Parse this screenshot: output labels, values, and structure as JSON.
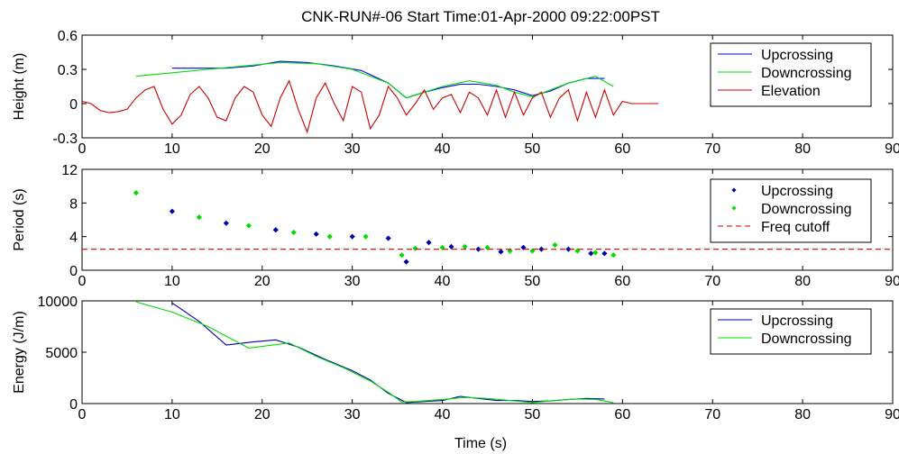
{
  "figure": {
    "title": "CNK-RUN#-06  Start Time:01-Apr-2000 09:22:00PST",
    "xlabel": "Time (s)"
  },
  "chart_data": [
    {
      "type": "line",
      "ylabel": "Height (m)",
      "xlim": [
        0,
        90
      ],
      "ylim": [
        -0.3,
        0.6
      ],
      "xticks": [
        "0",
        "10",
        "20",
        "30",
        "40",
        "50",
        "60",
        "70",
        "80",
        "90"
      ],
      "yticks": [
        "-0.3",
        "0",
        "0.3",
        "0.6"
      ],
      "legend_position": "top-right",
      "series": [
        {
          "name": "Upcrossing",
          "color": "#0000ff",
          "style": "line",
          "x": [
            10,
            13,
            16,
            19,
            22,
            25,
            28,
            31,
            34,
            36,
            38,
            40,
            42,
            44,
            46,
            48,
            50,
            52,
            54,
            56,
            58
          ],
          "y": [
            0.31,
            0.31,
            0.31,
            0.33,
            0.37,
            0.36,
            0.33,
            0.29,
            0.18,
            0.05,
            0.1,
            0.14,
            0.17,
            0.17,
            0.15,
            0.12,
            0.07,
            0.11,
            0.18,
            0.22,
            0.22
          ]
        },
        {
          "name": "Downcrossing",
          "color": "#00dd00",
          "style": "line",
          "x": [
            6,
            10,
            14,
            18,
            22,
            26,
            30,
            34,
            36,
            38,
            40,
            43,
            46,
            48,
            50,
            52,
            54,
            57,
            59
          ],
          "y": [
            0.24,
            0.27,
            0.3,
            0.33,
            0.36,
            0.35,
            0.3,
            0.18,
            0.05,
            0.1,
            0.15,
            0.2,
            0.16,
            0.1,
            0.06,
            0.12,
            0.18,
            0.24,
            0.15
          ]
        },
        {
          "name": "Elevation",
          "color": "#cc0000",
          "style": "line",
          "x": [
            0,
            1,
            2,
            3,
            4,
            5,
            6,
            7,
            8,
            9,
            10,
            11,
            12,
            13,
            14,
            15,
            16,
            17,
            18,
            19,
            20,
            21,
            22,
            23,
            24,
            25,
            26,
            27,
            28,
            29,
            30,
            31,
            32,
            33,
            34,
            35,
            36,
            37,
            38,
            39,
            40,
            41,
            42,
            43,
            44,
            45,
            46,
            47,
            48,
            49,
            50,
            51,
            52,
            53,
            54,
            55,
            56,
            57,
            58,
            59,
            60,
            61,
            62,
            63,
            64
          ],
          "y": [
            0.02,
            0.0,
            -0.06,
            -0.08,
            -0.07,
            -0.05,
            0.05,
            0.12,
            0.15,
            -0.05,
            -0.18,
            -0.1,
            0.08,
            0.15,
            0.05,
            -0.12,
            -0.15,
            0.05,
            0.15,
            0.1,
            -0.1,
            -0.2,
            0.05,
            0.2,
            -0.05,
            -0.25,
            0.05,
            0.18,
            0.0,
            -0.15,
            0.15,
            0.1,
            -0.22,
            -0.1,
            0.15,
            0.05,
            -0.1,
            0.0,
            0.12,
            -0.05,
            0.05,
            0.08,
            -0.08,
            0.1,
            0.05,
            -0.1,
            0.12,
            -0.12,
            0.1,
            -0.1,
            0.05,
            0.1,
            -0.12,
            0.05,
            0.12,
            -0.15,
            0.1,
            -0.12,
            0.12,
            -0.1,
            0.02,
            0.0,
            0.0,
            0.0,
            0.0
          ]
        }
      ]
    },
    {
      "type": "scatter",
      "ylabel": "Period (s)",
      "xlim": [
        0,
        90
      ],
      "ylim": [
        0,
        12
      ],
      "xticks": [
        "0",
        "10",
        "20",
        "30",
        "40",
        "50",
        "60",
        "70",
        "80",
        "90"
      ],
      "yticks": [
        "0",
        "4",
        "8",
        "12"
      ],
      "legend_position": "top-right",
      "series": [
        {
          "name": "Upcrossing",
          "color": "#0000aa",
          "style": "points",
          "x": [
            10,
            16,
            21.5,
            26,
            30,
            34,
            36,
            38.5,
            41,
            44,
            46.5,
            49,
            51,
            54,
            56.5,
            58
          ],
          "y": [
            7.0,
            5.6,
            4.8,
            4.3,
            4.0,
            3.8,
            1.0,
            3.3,
            2.8,
            2.5,
            2.2,
            2.7,
            2.5,
            2.5,
            2.0,
            2.0
          ]
        },
        {
          "name": "Downcrossing",
          "color": "#00dd00",
          "style": "points",
          "x": [
            6,
            13,
            18.5,
            23.5,
            27.5,
            31.5,
            35.5,
            37,
            40,
            42.5,
            45,
            47.5,
            50,
            52.5,
            55,
            57,
            59
          ],
          "y": [
            9.2,
            6.3,
            5.3,
            4.5,
            4.0,
            4.0,
            1.8,
            2.6,
            2.7,
            2.8,
            2.7,
            2.3,
            2.3,
            3.0,
            2.3,
            2.1,
            1.8
          ]
        },
        {
          "name": "Freq cutoff",
          "color": "#cc0000",
          "style": "dashed",
          "x": [
            0,
            90
          ],
          "y": [
            2.5,
            2.5
          ]
        }
      ]
    },
    {
      "type": "line",
      "ylabel": "Energy (J/m)",
      "xlim": [
        0,
        90
      ],
      "ylim": [
        0,
        10000
      ],
      "xticks": [
        "0",
        "10",
        "20",
        "30",
        "40",
        "50",
        "60",
        "70",
        "80",
        "90"
      ],
      "yticks": [
        "0",
        "5000",
        "10000"
      ],
      "legend_position": "top-right",
      "series": [
        {
          "name": "Upcrossing",
          "color": "#0000aa",
          "style": "line",
          "x": [
            10,
            13,
            16,
            19,
            21.5,
            24,
            27,
            30,
            32,
            34,
            36,
            38,
            40,
            42,
            44,
            46,
            48,
            50,
            52,
            54,
            56,
            58
          ],
          "y": [
            9800,
            8000,
            5700,
            6000,
            6200,
            5500,
            4300,
            3200,
            2300,
            1000,
            100,
            200,
            300,
            700,
            500,
            300,
            300,
            200,
            250,
            400,
            500,
            450
          ]
        },
        {
          "name": "Downcrossing",
          "color": "#00dd00",
          "style": "line",
          "x": [
            6,
            10,
            14,
            18.5,
            23,
            26,
            29,
            32,
            34,
            35.5,
            37,
            40,
            42.5,
            45,
            47.5,
            50,
            52.5,
            55,
            57,
            59
          ],
          "y": [
            9900,
            8900,
            7500,
            5400,
            5900,
            4600,
            3500,
            2200,
            1100,
            150,
            200,
            400,
            600,
            500,
            300,
            100,
            300,
            450,
            400,
            100
          ]
        }
      ]
    }
  ]
}
